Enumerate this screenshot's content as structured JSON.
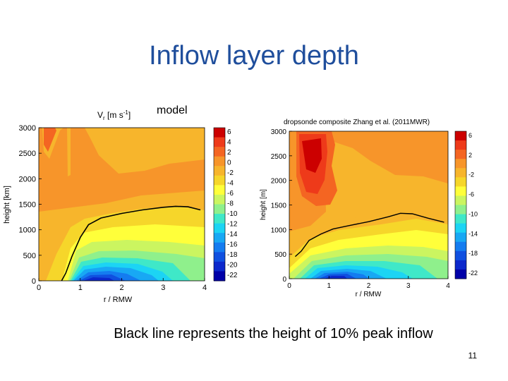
{
  "slide": {
    "title": "Inflow layer depth",
    "model_label": "model",
    "caption": "Black line represents the height of 10% peak inflow",
    "page_number": "11"
  },
  "chart_data": [
    {
      "type": "heatmap",
      "title": "V_r [m s^-1]",
      "title_main": "V",
      "title_sub": "r",
      "title_unit": "[m s",
      "title_exp": "-1",
      "title_end": "]",
      "xlabel": "r / RMW",
      "ylabel": "height [km]",
      "xlim": [
        0,
        4
      ],
      "ylim": [
        0,
        3000
      ],
      "x_ticks": [
        "0",
        "1",
        "2",
        "3",
        "4"
      ],
      "y_ticks": [
        "0",
        "500",
        "1000",
        "1500",
        "2000",
        "2500",
        "3000"
      ],
      "colorbar_ticks": [
        "6",
        "4",
        "2",
        "0",
        "-2",
        "-4",
        "-6",
        "-8",
        "-10",
        "-12",
        "-14",
        "-16",
        "-18",
        "-20",
        "-22"
      ],
      "black_line": {
        "x": [
          0.55,
          0.65,
          0.8,
          1.0,
          1.2,
          1.5,
          2.0,
          2.5,
          3.0,
          3.3,
          3.6,
          3.9
        ],
        "y": [
          0,
          150,
          480,
          850,
          1100,
          1230,
          1320,
          1390,
          1440,
          1460,
          1450,
          1390
        ]
      }
    },
    {
      "type": "heatmap",
      "title": "dropsonde composite Zhang et al. (2011MWR)",
      "xlabel": "r / RMW",
      "ylabel": "height [m]",
      "xlim": [
        0,
        4
      ],
      "ylim": [
        0,
        3000
      ],
      "x_ticks": [
        "0",
        "1",
        "2",
        "3",
        "4"
      ],
      "y_ticks": [
        "0",
        "500",
        "1000",
        "1500",
        "2000",
        "2500",
        "3000"
      ],
      "colorbar_ticks": [
        "6",
        "2",
        "-2",
        "-6",
        "-10",
        "-14",
        "-18",
        "-22"
      ],
      "black_line": {
        "x": [
          0.15,
          0.3,
          0.5,
          0.8,
          1.1,
          1.5,
          2.0,
          2.5,
          2.8,
          3.1,
          3.5,
          3.9
        ],
        "y": [
          450,
          560,
          780,
          910,
          1010,
          1080,
          1160,
          1260,
          1330,
          1320,
          1230,
          1150
        ]
      }
    }
  ],
  "colors": {
    "title": "#1f4e9c",
    "scale": [
      "#cc0000",
      "#ee3a1a",
      "#f46522",
      "#f7952a",
      "#f7b52c",
      "#f6d62a",
      "#ffff3a",
      "#cbf560",
      "#8ff08c",
      "#3fe8c8",
      "#1cd4f4",
      "#18a8f4",
      "#147cf0",
      "#1050e0",
      "#0c28cc",
      "#0000a8"
    ]
  }
}
